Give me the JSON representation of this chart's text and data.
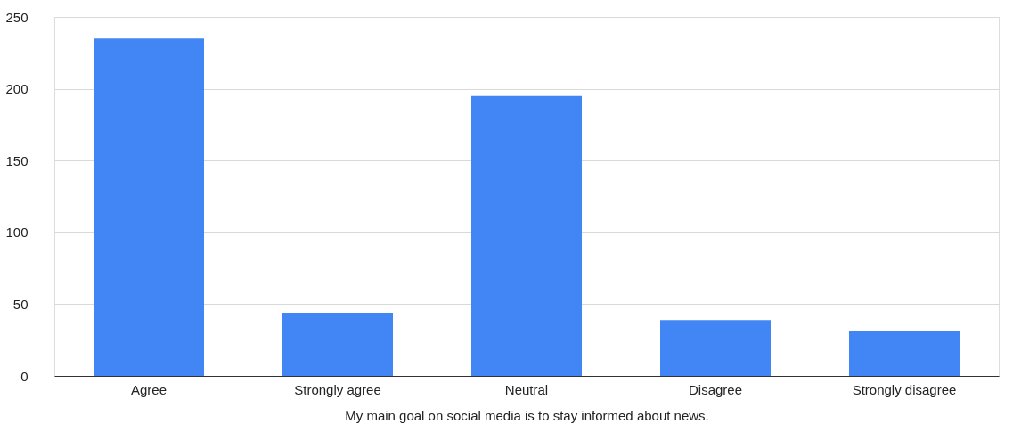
{
  "chart_data": {
    "type": "bar",
    "xlabel": "My main goal on social media is to stay informed about news.",
    "categories": [
      "Agree",
      "Strongly agree",
      "Neutral",
      "Disagree",
      "Strongly disagree"
    ],
    "values": [
      235,
      44,
      195,
      39,
      31
    ],
    "color": "#4285f4",
    "ylim": [
      0,
      250
    ],
    "yticks": [
      0,
      50,
      100,
      150,
      200,
      250
    ],
    "grid": "y"
  }
}
